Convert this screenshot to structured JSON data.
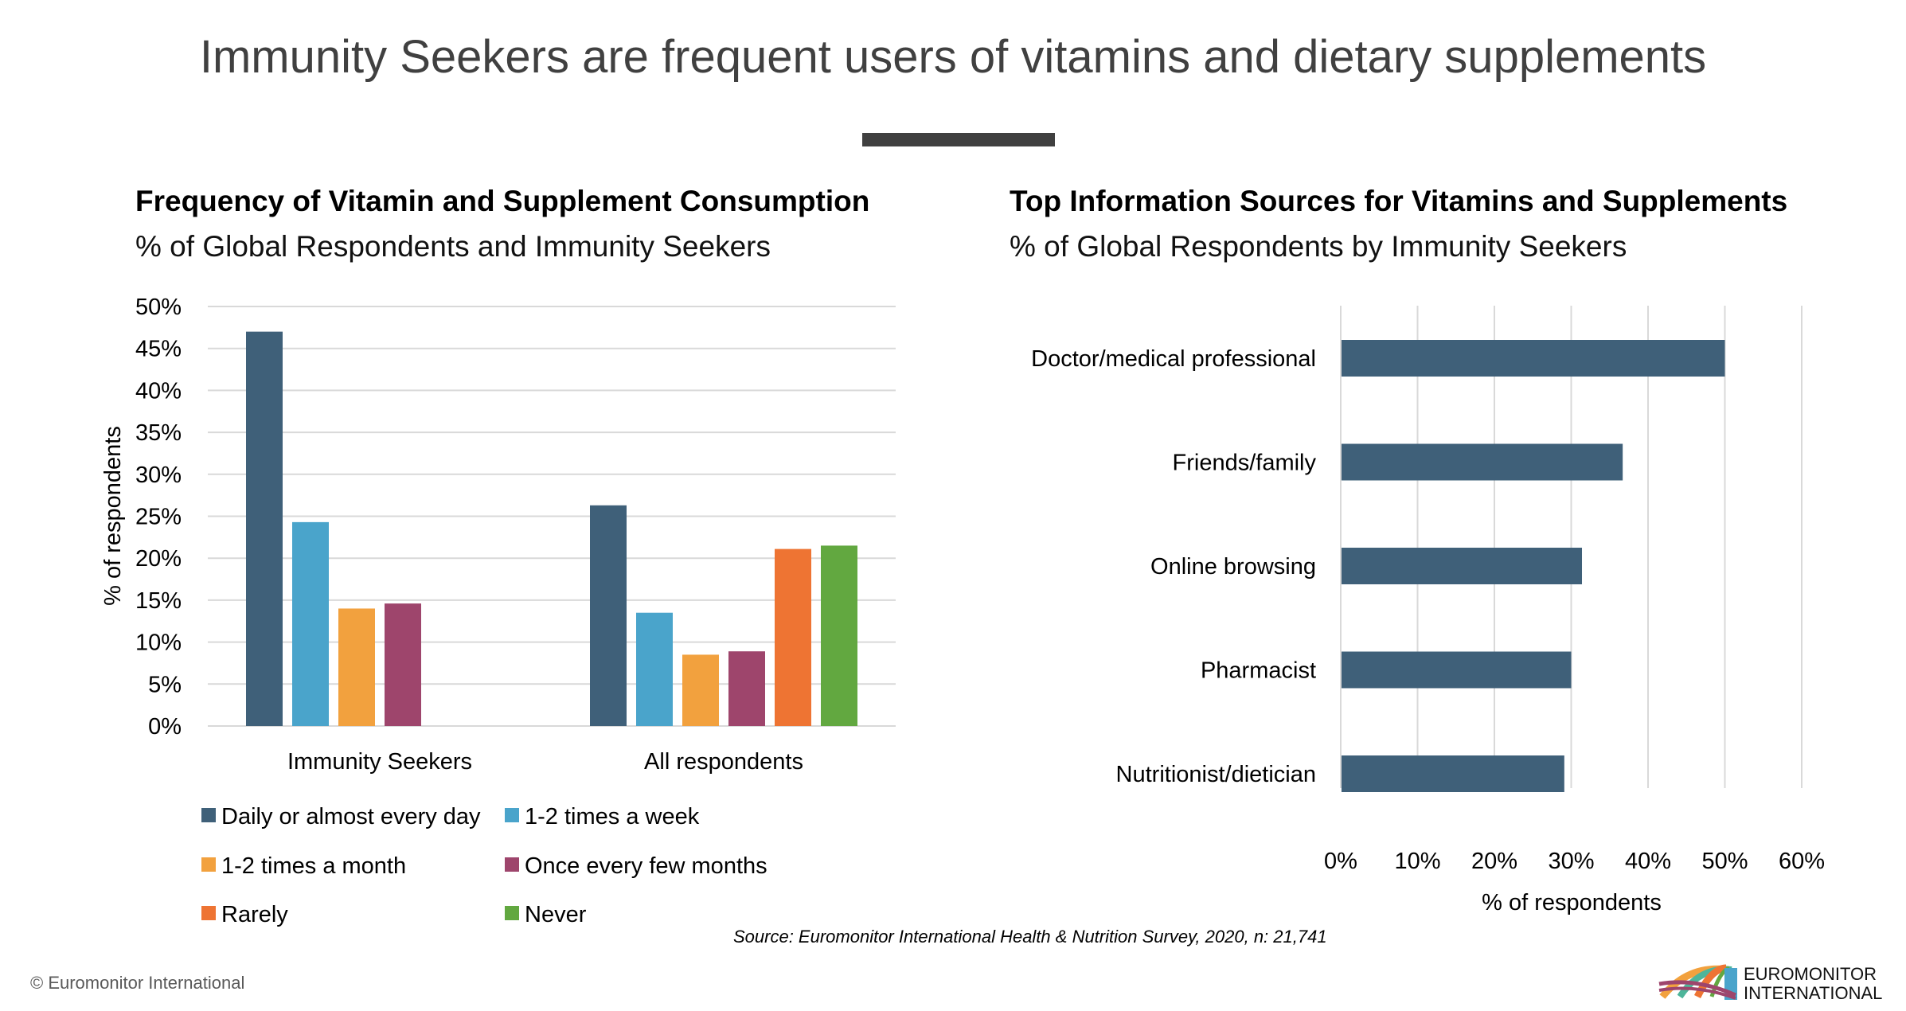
{
  "title": "Immunity Seekers are frequent users of vitamins and dietary supplements",
  "source": "Source: Euromonitor International Health & Nutrition Survey, 2020, n: 21,741",
  "copyright": "© Euromonitor International",
  "logo": {
    "line1": "EUROMONITOR",
    "line2": "INTERNATIONAL"
  },
  "chart_data": [
    {
      "type": "bar",
      "title": "Frequency of Vitamin and Supplement Consumption",
      "subtitle": "% of Global Respondents and Immunity Seekers",
      "ylabel": "% of respondents",
      "xlabel": "",
      "ylim": [
        0,
        50
      ],
      "yticks": [
        "0%",
        "5%",
        "10%",
        "15%",
        "20%",
        "25%",
        "30%",
        "35%",
        "40%",
        "45%",
        "50%"
      ],
      "grid": true,
      "legend_position": "bottom",
      "categories": [
        "Immunity Seekers",
        "All respondents"
      ],
      "series": [
        {
          "name": "Daily or almost every day",
          "color": "#3F6079",
          "values": [
            47.0,
            26.3
          ]
        },
        {
          "name": "1-2 times a week",
          "color": "#4AA4CB",
          "values": [
            24.3,
            13.5
          ]
        },
        {
          "name": "1-2 times a month",
          "color": "#F2A13E",
          "values": [
            14.0,
            8.5
          ]
        },
        {
          "name": "Once every few months",
          "color": "#9E456C",
          "values": [
            14.6,
            8.9
          ]
        },
        {
          "name": "Rarely",
          "color": "#EE7433",
          "values": [
            null,
            21.1
          ]
        },
        {
          "name": "Never",
          "color": "#62A840",
          "values": [
            null,
            21.5
          ]
        }
      ]
    },
    {
      "type": "bar",
      "orientation": "horizontal",
      "title": "Top Information Sources for Vitamins and Supplements",
      "subtitle": "% of Global Respondents by Immunity Seekers",
      "xlabel": "% of respondents",
      "ylabel": "",
      "xlim": [
        0,
        60
      ],
      "xticks": [
        "0%",
        "10%",
        "20%",
        "30%",
        "40%",
        "50%",
        "60%"
      ],
      "grid": true,
      "color": "#3F6079",
      "categories": [
        "Doctor/medical professional",
        "Friends/family",
        "Online browsing",
        "Pharmacist",
        "Nutritionist/dietician"
      ],
      "values": [
        50.0,
        36.7,
        31.4,
        30.0,
        29.1
      ]
    }
  ]
}
